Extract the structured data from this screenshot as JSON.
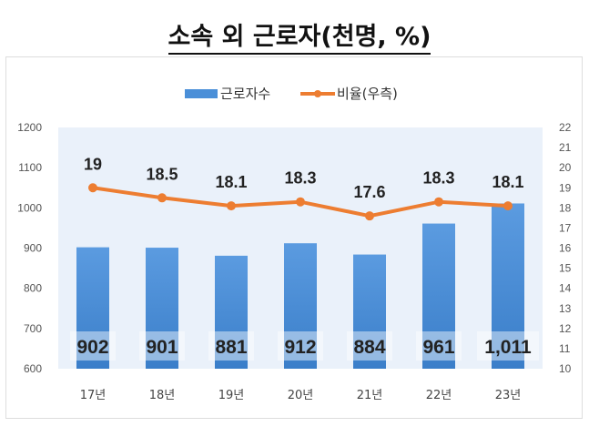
{
  "title": "소속 외 근로자(천명, %)",
  "chart_data": {
    "type": "bar+line",
    "categories": [
      "17년",
      "18년",
      "19년",
      "20년",
      "21년",
      "22년",
      "23년"
    ],
    "series": [
      {
        "name": "근로자수",
        "type": "bar",
        "axis": "left",
        "values": [
          902,
          901,
          881,
          912,
          884,
          961,
          1011
        ],
        "labels": [
          "902",
          "901",
          "881",
          "912",
          "884",
          "961",
          "1,011"
        ],
        "color": "#4a8fd8"
      },
      {
        "name": "비율(우측)",
        "type": "line",
        "axis": "right",
        "values": [
          19,
          18.5,
          18.1,
          18.3,
          17.6,
          18.3,
          18.1
        ],
        "labels": [
          "19",
          "18.5",
          "18.1",
          "18.3",
          "17.6",
          "18.3",
          "18.1"
        ],
        "color": "#ed7d31"
      }
    ],
    "y_left": {
      "range": [
        600,
        1200
      ],
      "ticks": [
        "600",
        "700",
        "800",
        "900",
        "1000",
        "1100",
        "1200"
      ]
    },
    "y_right": {
      "range": [
        10,
        22
      ],
      "ticks": [
        "10",
        "11",
        "12",
        "13",
        "14",
        "15",
        "16",
        "17",
        "18",
        "19",
        "20",
        "21",
        "22"
      ]
    },
    "legend": "top",
    "plot_background": "#eaf1fa",
    "grid": false
  }
}
